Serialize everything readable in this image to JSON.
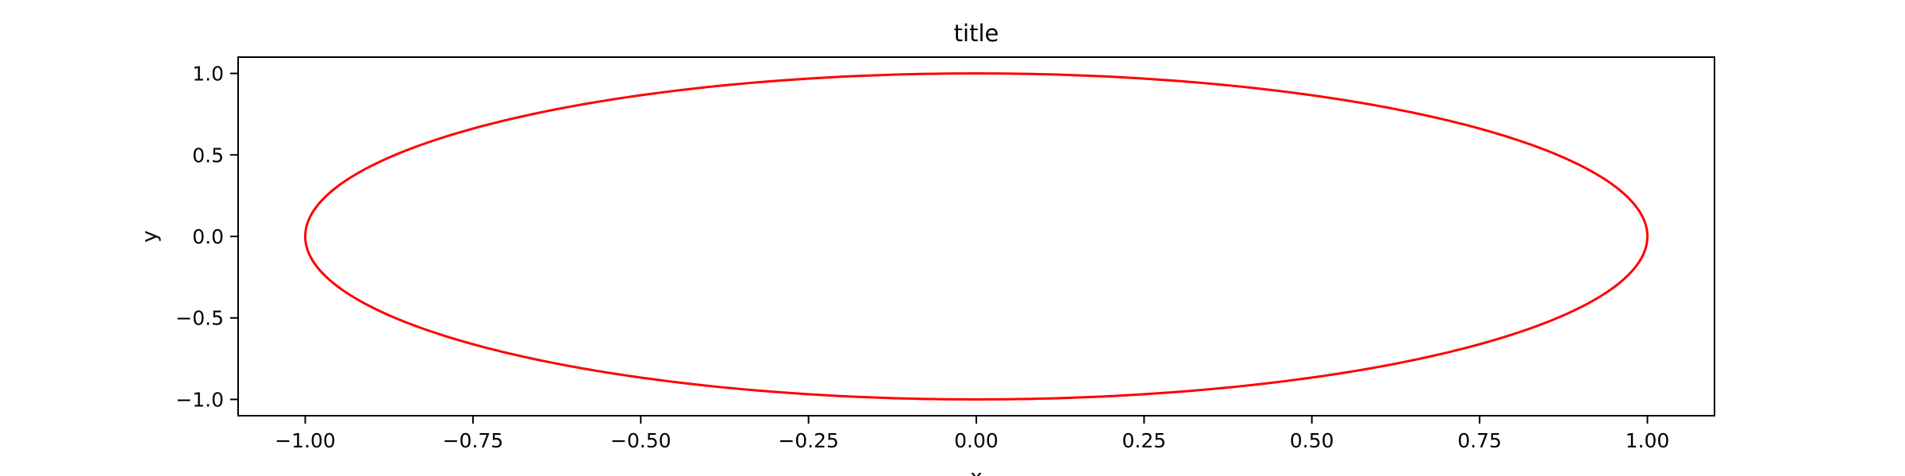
{
  "chart_data": {
    "type": "line",
    "title": "title",
    "xlabel": "x",
    "ylabel": "y",
    "xlim": [
      -1.1,
      1.1
    ],
    "ylim": [
      -1.1,
      1.1
    ],
    "grid": false,
    "x_ticks": [
      -1.0,
      -0.75,
      -0.5,
      -0.25,
      0.0,
      0.25,
      0.5,
      0.75,
      1.0
    ],
    "y_ticks": [
      -1.0,
      -0.5,
      0.0,
      0.5,
      1.0
    ],
    "x_tick_labels": [
      "−1.00",
      "−0.75",
      "−0.50",
      "−0.25",
      "0.00",
      "0.25",
      "0.50",
      "0.75",
      "1.00"
    ],
    "y_tick_labels": [
      "−1.0",
      "−0.5",
      "0.0",
      "0.5",
      "1.0"
    ],
    "series": [
      {
        "color": "#ff0000",
        "shape": "ellipse",
        "center": [
          0,
          0
        ],
        "radius_x": 1.0,
        "radius_y": 1.0
      }
    ]
  }
}
